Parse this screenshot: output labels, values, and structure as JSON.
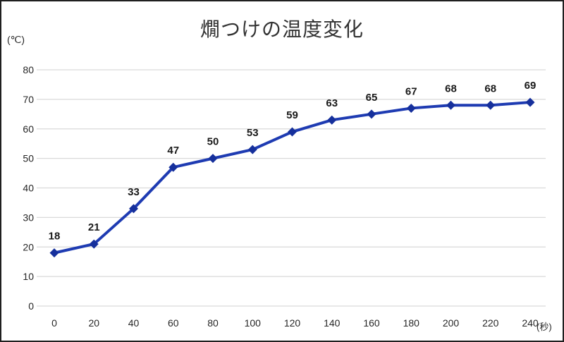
{
  "chart_data": {
    "type": "line",
    "title": "燗つけの温度変化",
    "y_unit": "(℃)",
    "x_unit": "(秒)",
    "x": [
      0,
      20,
      40,
      60,
      80,
      100,
      120,
      140,
      160,
      180,
      200,
      220,
      240
    ],
    "values": [
      18,
      21,
      33,
      47,
      50,
      53,
      59,
      63,
      65,
      67,
      68,
      68,
      69
    ],
    "ylim": [
      0,
      80
    ],
    "ytick_step": 10,
    "grid": "horizontal",
    "legend": "none",
    "data_labels": true,
    "colors": {
      "line": "#1e3bb2",
      "marker": "#16309c",
      "gridline": "#d9d9d9",
      "tick_text": "#262626",
      "label_text": "#1a1a1a",
      "title_text": "#333333"
    }
  }
}
